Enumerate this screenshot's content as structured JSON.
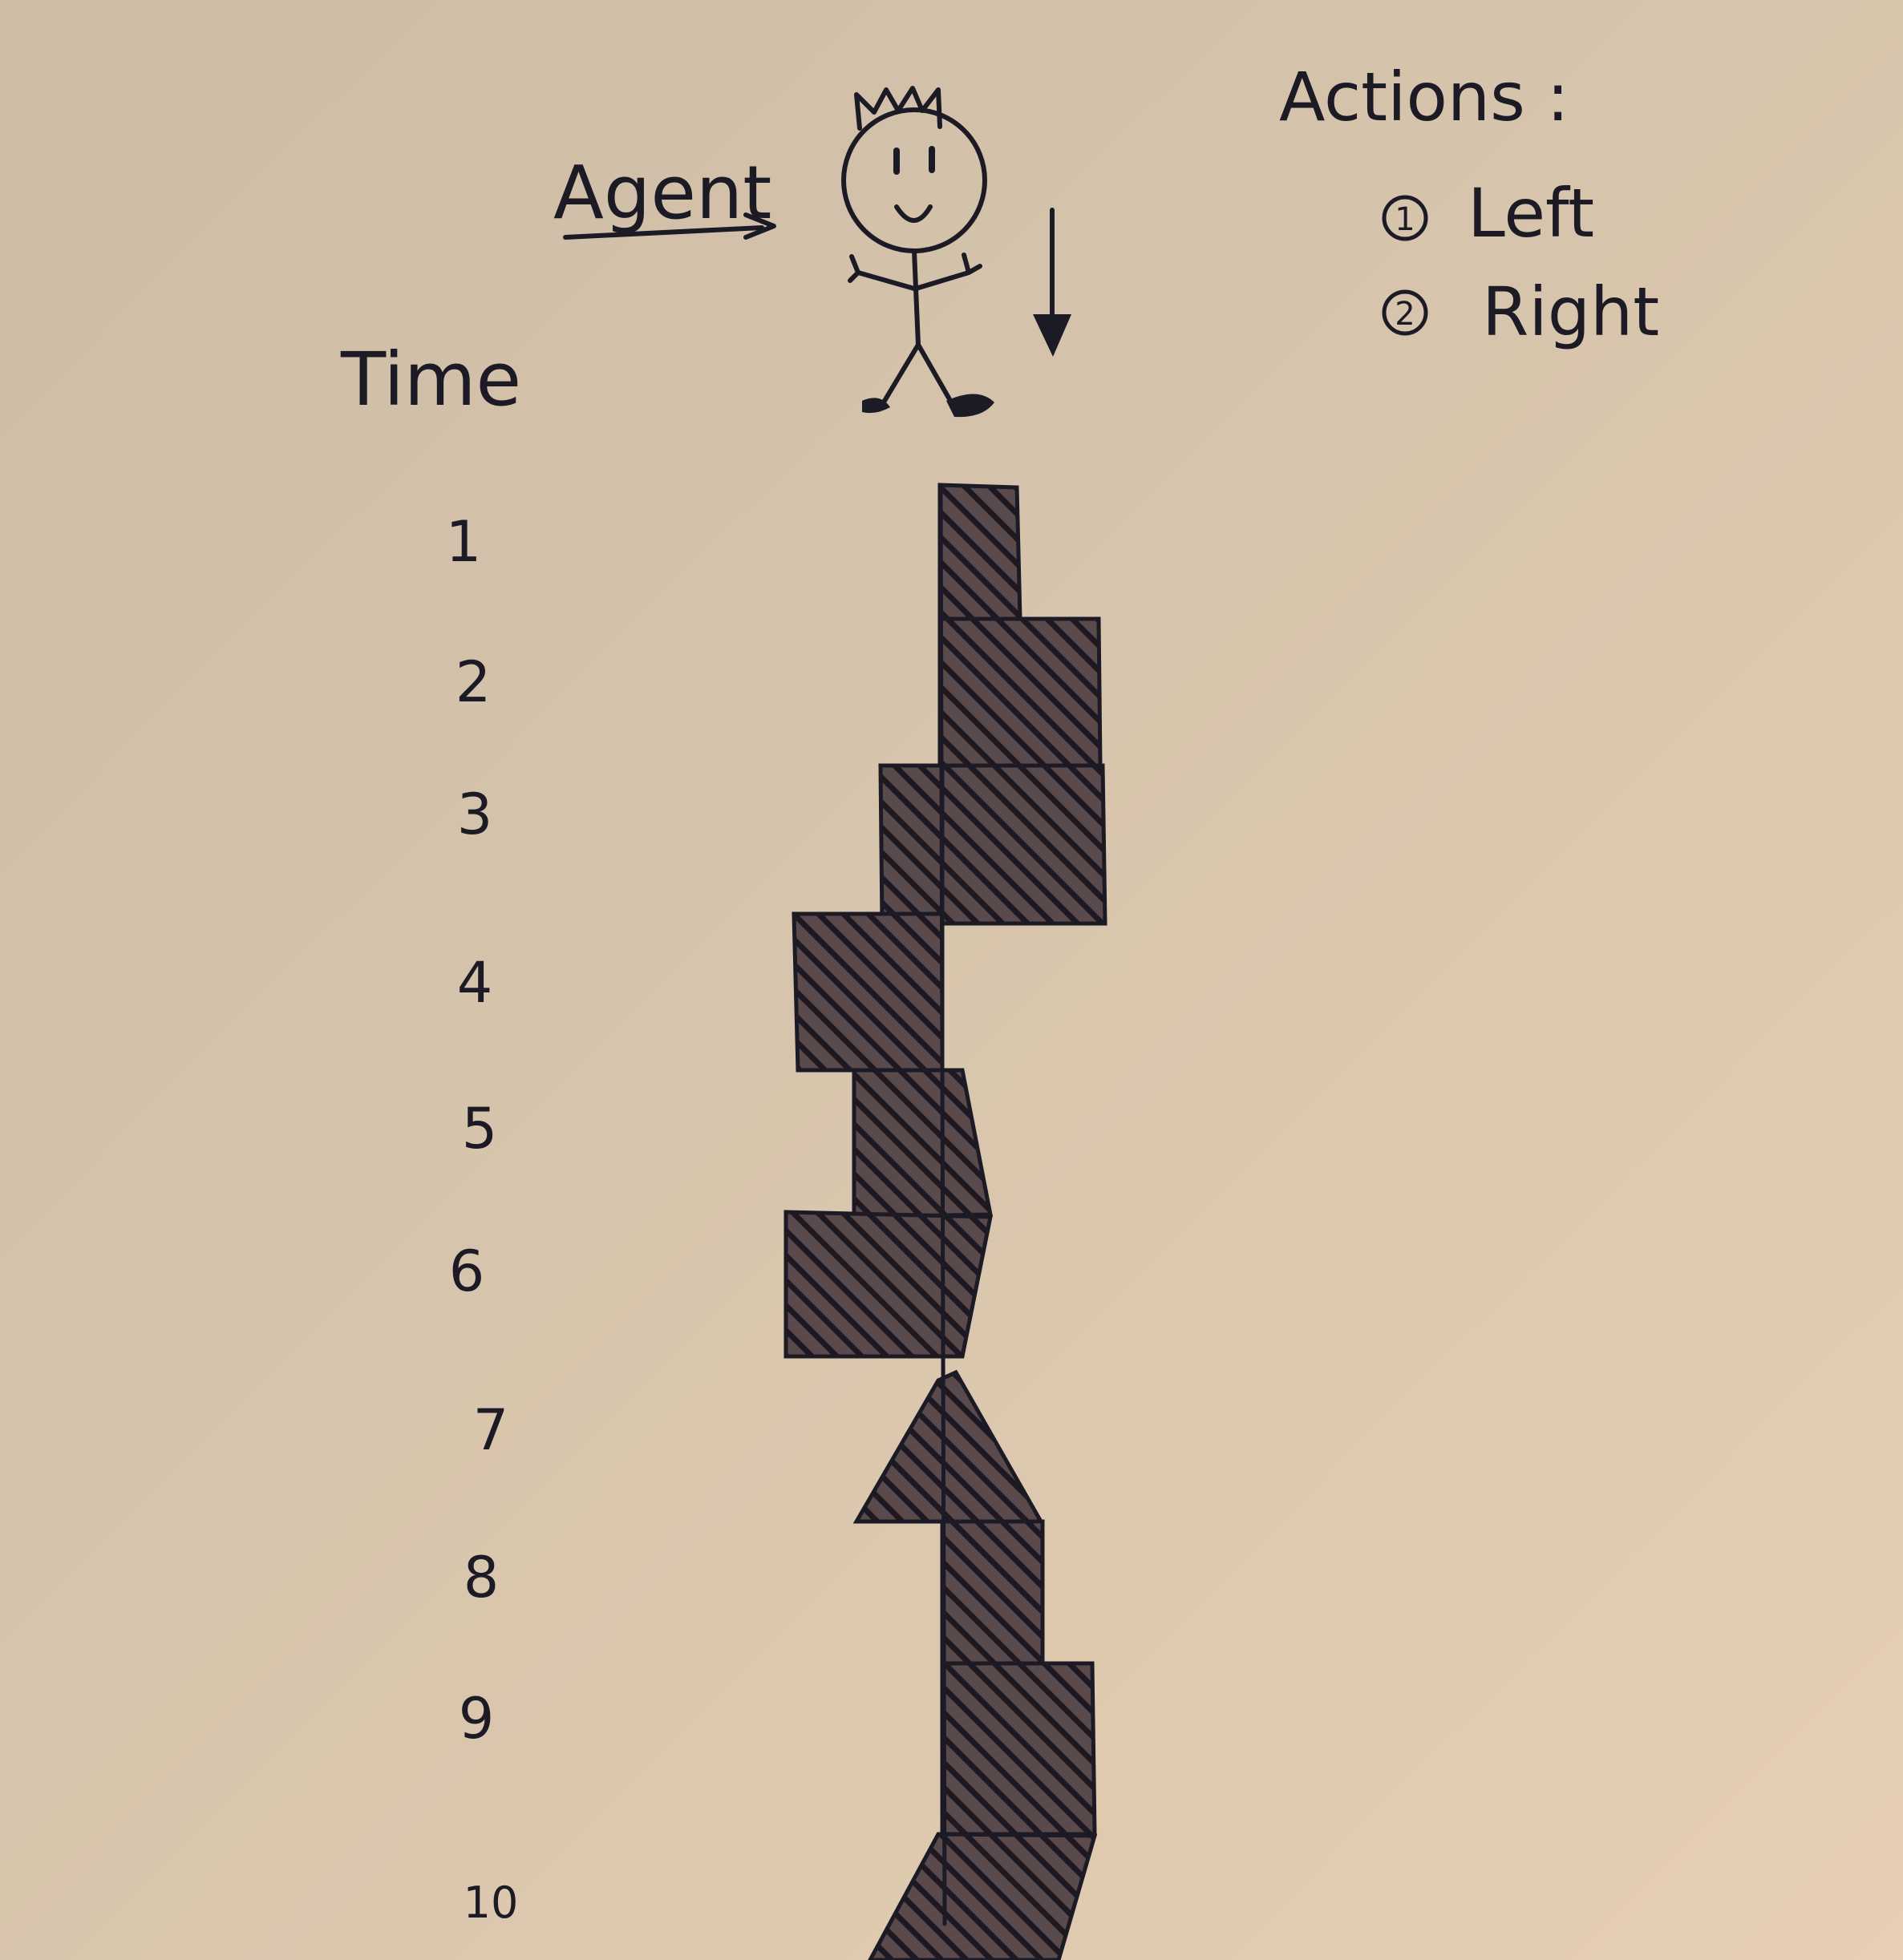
{
  "agent_label": "Agent",
  "time_label": "Time",
  "actions": {
    "title": "Actions :",
    "items": [
      {
        "number": "1",
        "label": "Left"
      },
      {
        "number": "2",
        "label": "Right"
      }
    ]
  },
  "timesteps": [
    "1",
    "2",
    "3",
    "4",
    "5",
    "6",
    "7",
    "8",
    "9",
    "10"
  ],
  "colors": {
    "ink": "#1c1a24",
    "hatch": "#3a2a30",
    "paper": "#d6c4ac"
  }
}
